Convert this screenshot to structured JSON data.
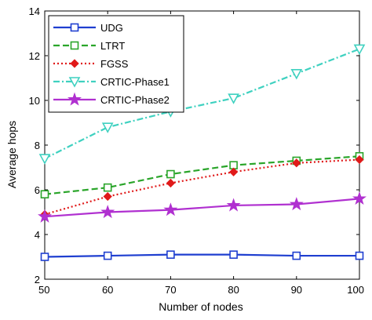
{
  "chart_data": {
    "type": "line",
    "title": "",
    "xlabel": "Number of nodes",
    "ylabel": "Average hops",
    "x": [
      50,
      60,
      70,
      80,
      90,
      100
    ],
    "xlim": [
      50,
      100
    ],
    "ylim": [
      2,
      14
    ],
    "xticks": [
      "50",
      "60",
      "70",
      "80",
      "90",
      "100"
    ],
    "yticks": [
      "2",
      "4",
      "6",
      "8",
      "10",
      "12",
      "14"
    ],
    "grid": false,
    "legend_position": "top-left",
    "series": [
      {
        "name": "UDG",
        "values": [
          3.0,
          3.05,
          3.1,
          3.1,
          3.05,
          3.05
        ],
        "color": "#1f3fd0",
        "line": "solid",
        "marker": "square-open"
      },
      {
        "name": "LTRT",
        "values": [
          5.8,
          6.1,
          6.7,
          7.1,
          7.3,
          7.5
        ],
        "color": "#2aa52a",
        "line": "dashed",
        "marker": "square-open"
      },
      {
        "name": "FGSS",
        "values": [
          4.9,
          5.7,
          6.3,
          6.8,
          7.2,
          7.35
        ],
        "color": "#e01a1a",
        "line": "dotted",
        "marker": "diamond-filled"
      },
      {
        "name": "CRTIC-Phase1",
        "values": [
          7.4,
          8.8,
          9.5,
          10.1,
          11.2,
          12.3
        ],
        "color": "#3fd1c0",
        "line": "dashdot",
        "marker": "triangle-down-open"
      },
      {
        "name": "CRTIC-Phase2",
        "values": [
          4.8,
          5.0,
          5.1,
          5.3,
          5.35,
          5.6
        ],
        "color": "#b030d0",
        "line": "solid",
        "marker": "star"
      }
    ]
  }
}
